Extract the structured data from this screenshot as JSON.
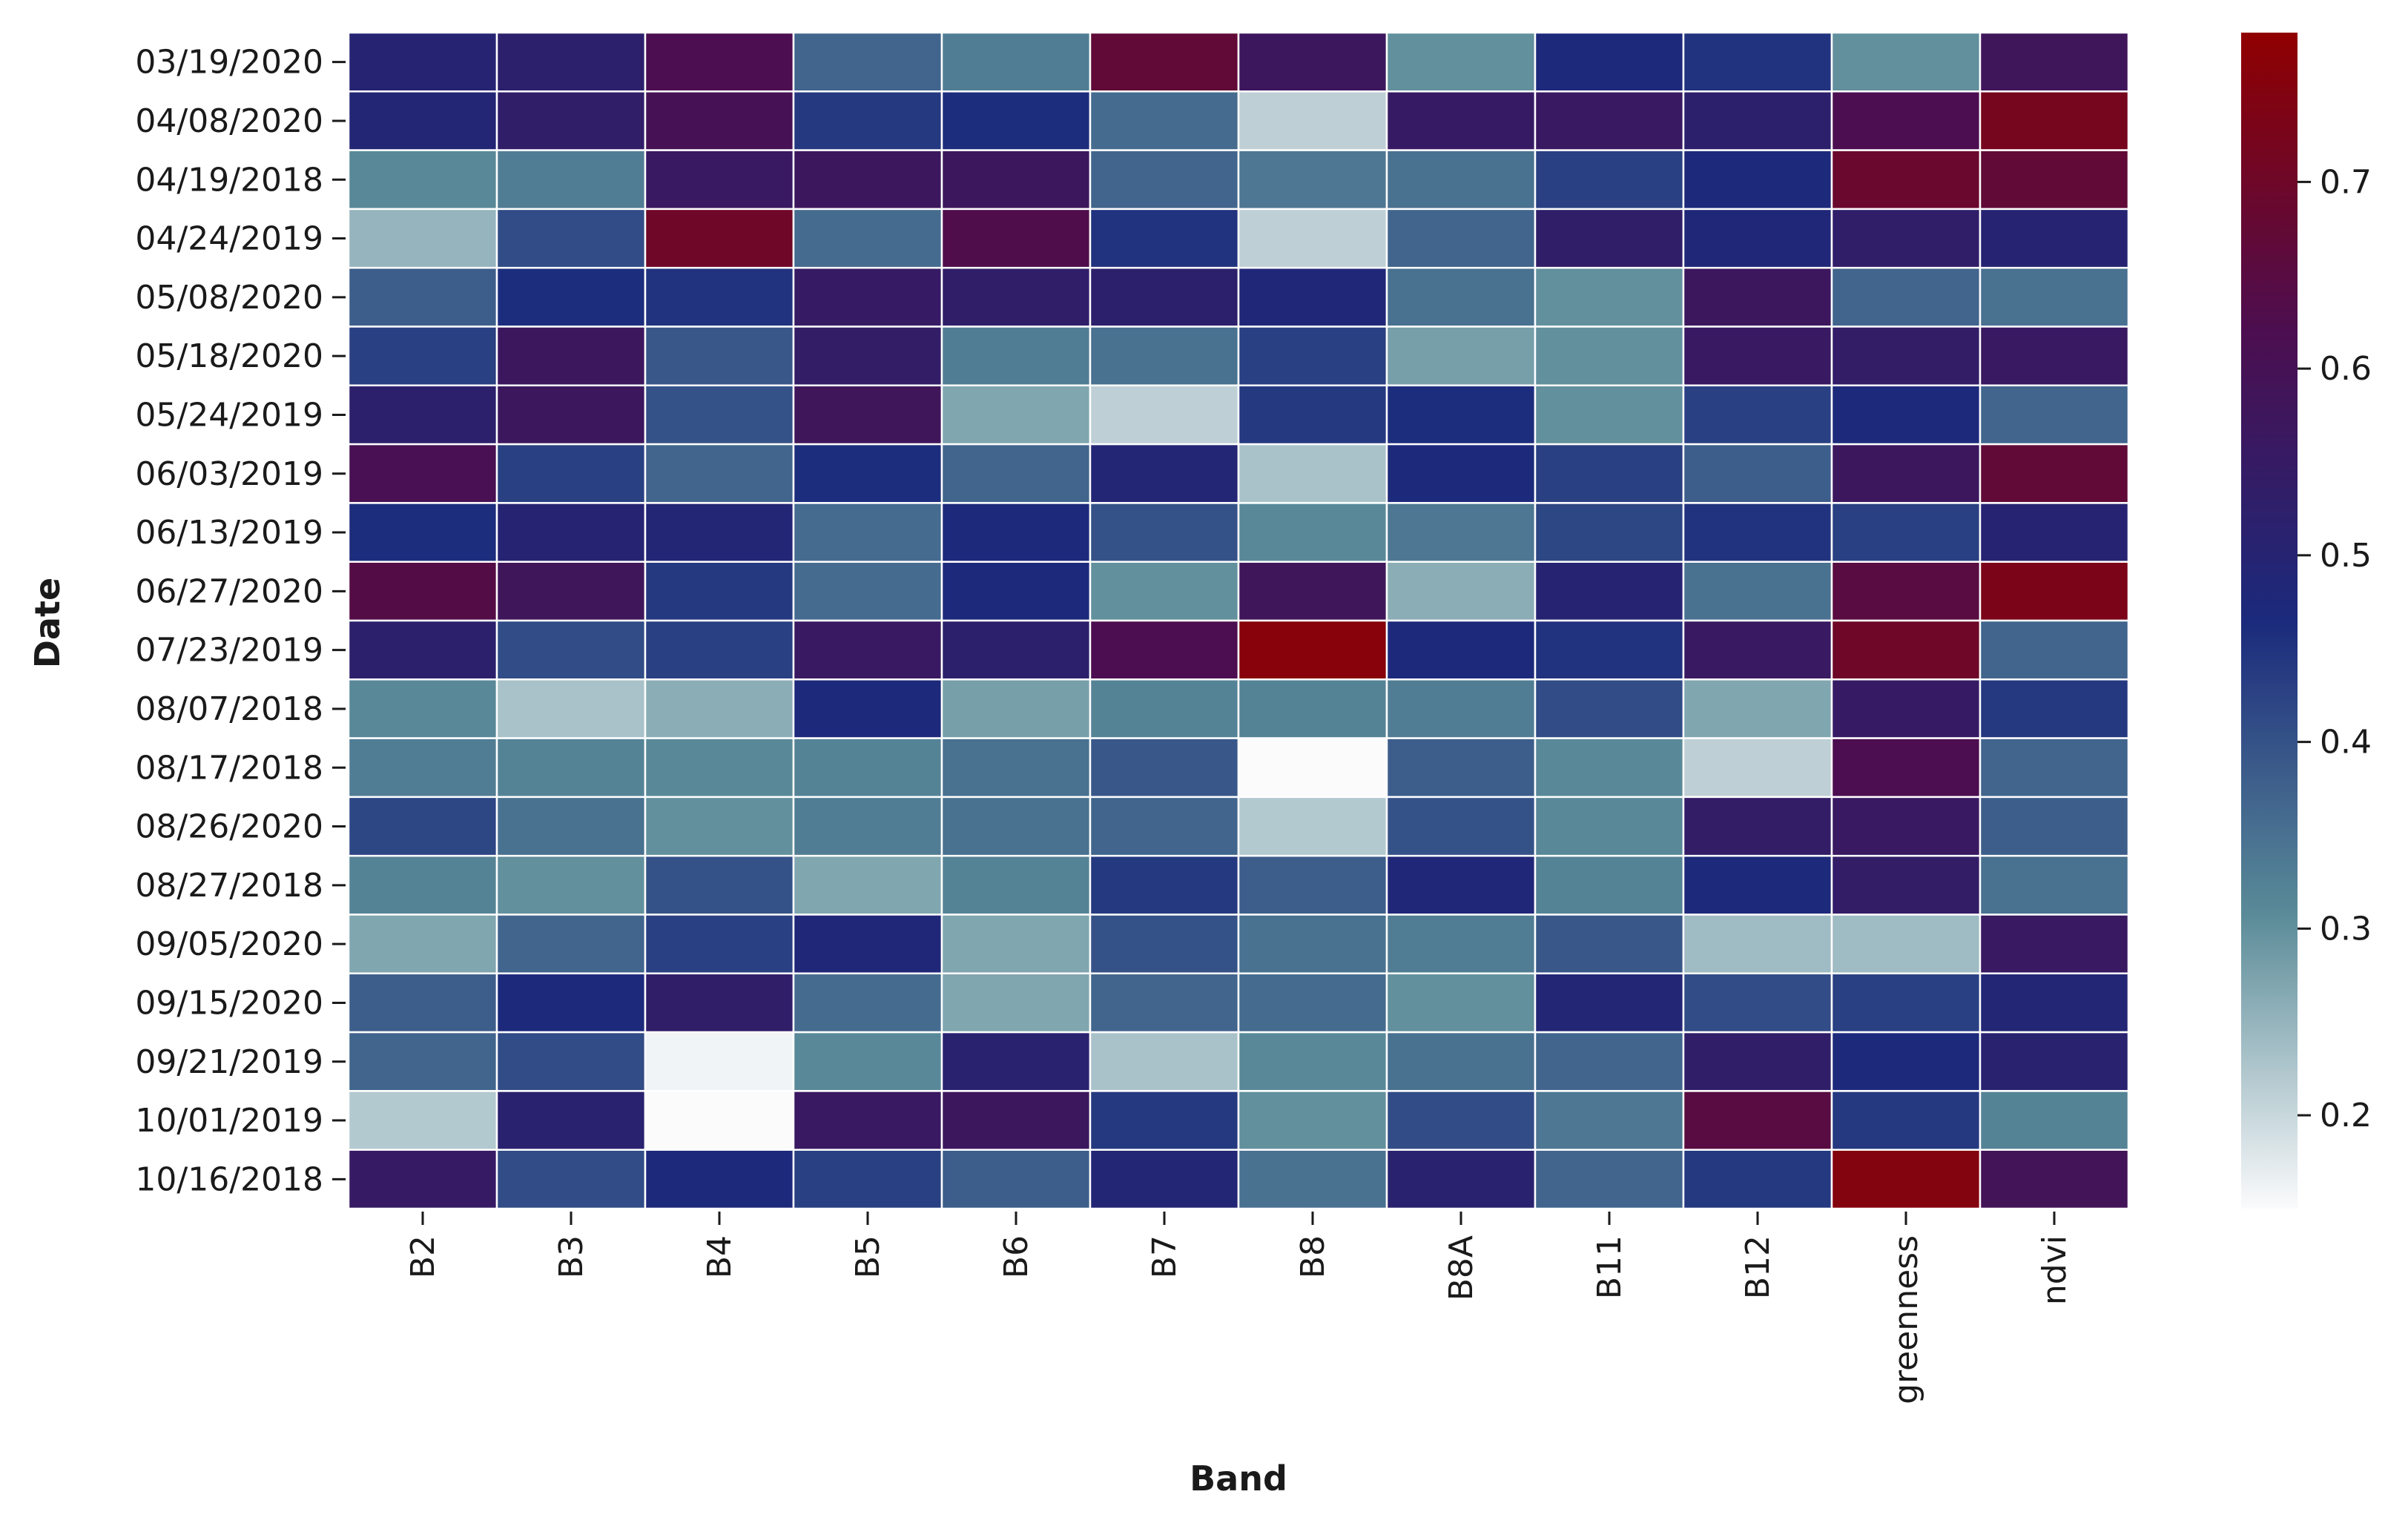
{
  "chart_data": {
    "type": "heatmap",
    "xlabel": "Band",
    "ylabel": "Date",
    "columns": [
      "B2",
      "B3",
      "B4",
      "B5",
      "B6",
      "B7",
      "B8",
      "B8A",
      "B11",
      "B12",
      "greenness",
      "ndvi"
    ],
    "rows": [
      "03/19/2020",
      "04/08/2020",
      "04/19/2018",
      "04/24/2019",
      "05/08/2020",
      "05/18/2020",
      "05/24/2019",
      "06/03/2019",
      "06/13/2019",
      "06/27/2020",
      "07/23/2019",
      "08/07/2018",
      "08/17/2018",
      "08/26/2020",
      "08/27/2018",
      "09/05/2020",
      "09/15/2020",
      "09/21/2019",
      "10/01/2019",
      "10/16/2018"
    ],
    "values": [
      [
        0.5,
        0.52,
        0.62,
        0.37,
        0.33,
        0.67,
        0.57,
        0.3,
        0.47,
        0.45,
        0.3,
        0.58
      ],
      [
        0.49,
        0.53,
        0.6,
        0.44,
        0.46,
        0.36,
        0.21,
        0.55,
        0.56,
        0.52,
        0.62,
        0.72
      ],
      [
        0.31,
        0.33,
        0.56,
        0.57,
        0.57,
        0.37,
        0.34,
        0.35,
        0.43,
        0.47,
        0.69,
        0.67
      ],
      [
        0.25,
        0.41,
        0.7,
        0.36,
        0.63,
        0.45,
        0.21,
        0.37,
        0.53,
        0.48,
        0.53,
        0.5
      ],
      [
        0.38,
        0.46,
        0.45,
        0.55,
        0.53,
        0.52,
        0.48,
        0.35,
        0.3,
        0.57,
        0.37,
        0.35
      ],
      [
        0.43,
        0.57,
        0.39,
        0.54,
        0.33,
        0.35,
        0.43,
        0.28,
        0.3,
        0.56,
        0.54,
        0.56
      ],
      [
        0.52,
        0.57,
        0.4,
        0.58,
        0.27,
        0.21,
        0.44,
        0.46,
        0.3,
        0.43,
        0.47,
        0.37
      ],
      [
        0.61,
        0.43,
        0.37,
        0.46,
        0.37,
        0.49,
        0.23,
        0.47,
        0.43,
        0.38,
        0.57,
        0.67
      ],
      [
        0.46,
        0.5,
        0.49,
        0.36,
        0.47,
        0.4,
        0.31,
        0.34,
        0.42,
        0.45,
        0.43,
        0.5
      ],
      [
        0.64,
        0.58,
        0.44,
        0.36,
        0.47,
        0.3,
        0.58,
        0.26,
        0.5,
        0.35,
        0.65,
        0.73
      ],
      [
        0.52,
        0.41,
        0.43,
        0.56,
        0.52,
        0.62,
        0.76,
        0.47,
        0.45,
        0.56,
        0.7,
        0.37
      ],
      [
        0.31,
        0.23,
        0.26,
        0.47,
        0.28,
        0.32,
        0.32,
        0.33,
        0.41,
        0.27,
        0.55,
        0.44
      ],
      [
        0.33,
        0.32,
        0.31,
        0.32,
        0.35,
        0.39,
        0.15,
        0.38,
        0.31,
        0.21,
        0.62,
        0.37
      ],
      [
        0.42,
        0.35,
        0.3,
        0.33,
        0.35,
        0.37,
        0.22,
        0.4,
        0.31,
        0.54,
        0.56,
        0.38
      ],
      [
        0.32,
        0.3,
        0.4,
        0.27,
        0.32,
        0.44,
        0.38,
        0.48,
        0.32,
        0.47,
        0.54,
        0.35
      ],
      [
        0.27,
        0.37,
        0.43,
        0.48,
        0.27,
        0.4,
        0.35,
        0.33,
        0.39,
        0.24,
        0.24,
        0.56
      ],
      [
        0.38,
        0.47,
        0.53,
        0.36,
        0.27,
        0.37,
        0.36,
        0.3,
        0.49,
        0.41,
        0.43,
        0.49
      ],
      [
        0.37,
        0.41,
        0.16,
        0.31,
        0.51,
        0.23,
        0.31,
        0.35,
        0.37,
        0.53,
        0.47,
        0.51
      ],
      [
        0.22,
        0.51,
        0.15,
        0.56,
        0.57,
        0.44,
        0.3,
        0.41,
        0.34,
        0.65,
        0.44,
        0.32
      ],
      [
        0.55,
        0.41,
        0.47,
        0.43,
        0.38,
        0.49,
        0.35,
        0.51,
        0.37,
        0.44,
        0.75,
        0.59
      ]
    ],
    "colorbar": {
      "min": 0.15,
      "max": 0.78,
      "ticks": [
        0.2,
        0.3,
        0.4,
        0.5,
        0.6,
        0.7
      ],
      "tick_labels": [
        "0.2",
        "0.3",
        "0.4",
        "0.5",
        "0.6",
        "0.7"
      ],
      "colors": [
        "#fbfbfc",
        "#5a8b98",
        "#1b2a7c",
        "#4d0e4f",
        "#900000"
      ]
    }
  }
}
